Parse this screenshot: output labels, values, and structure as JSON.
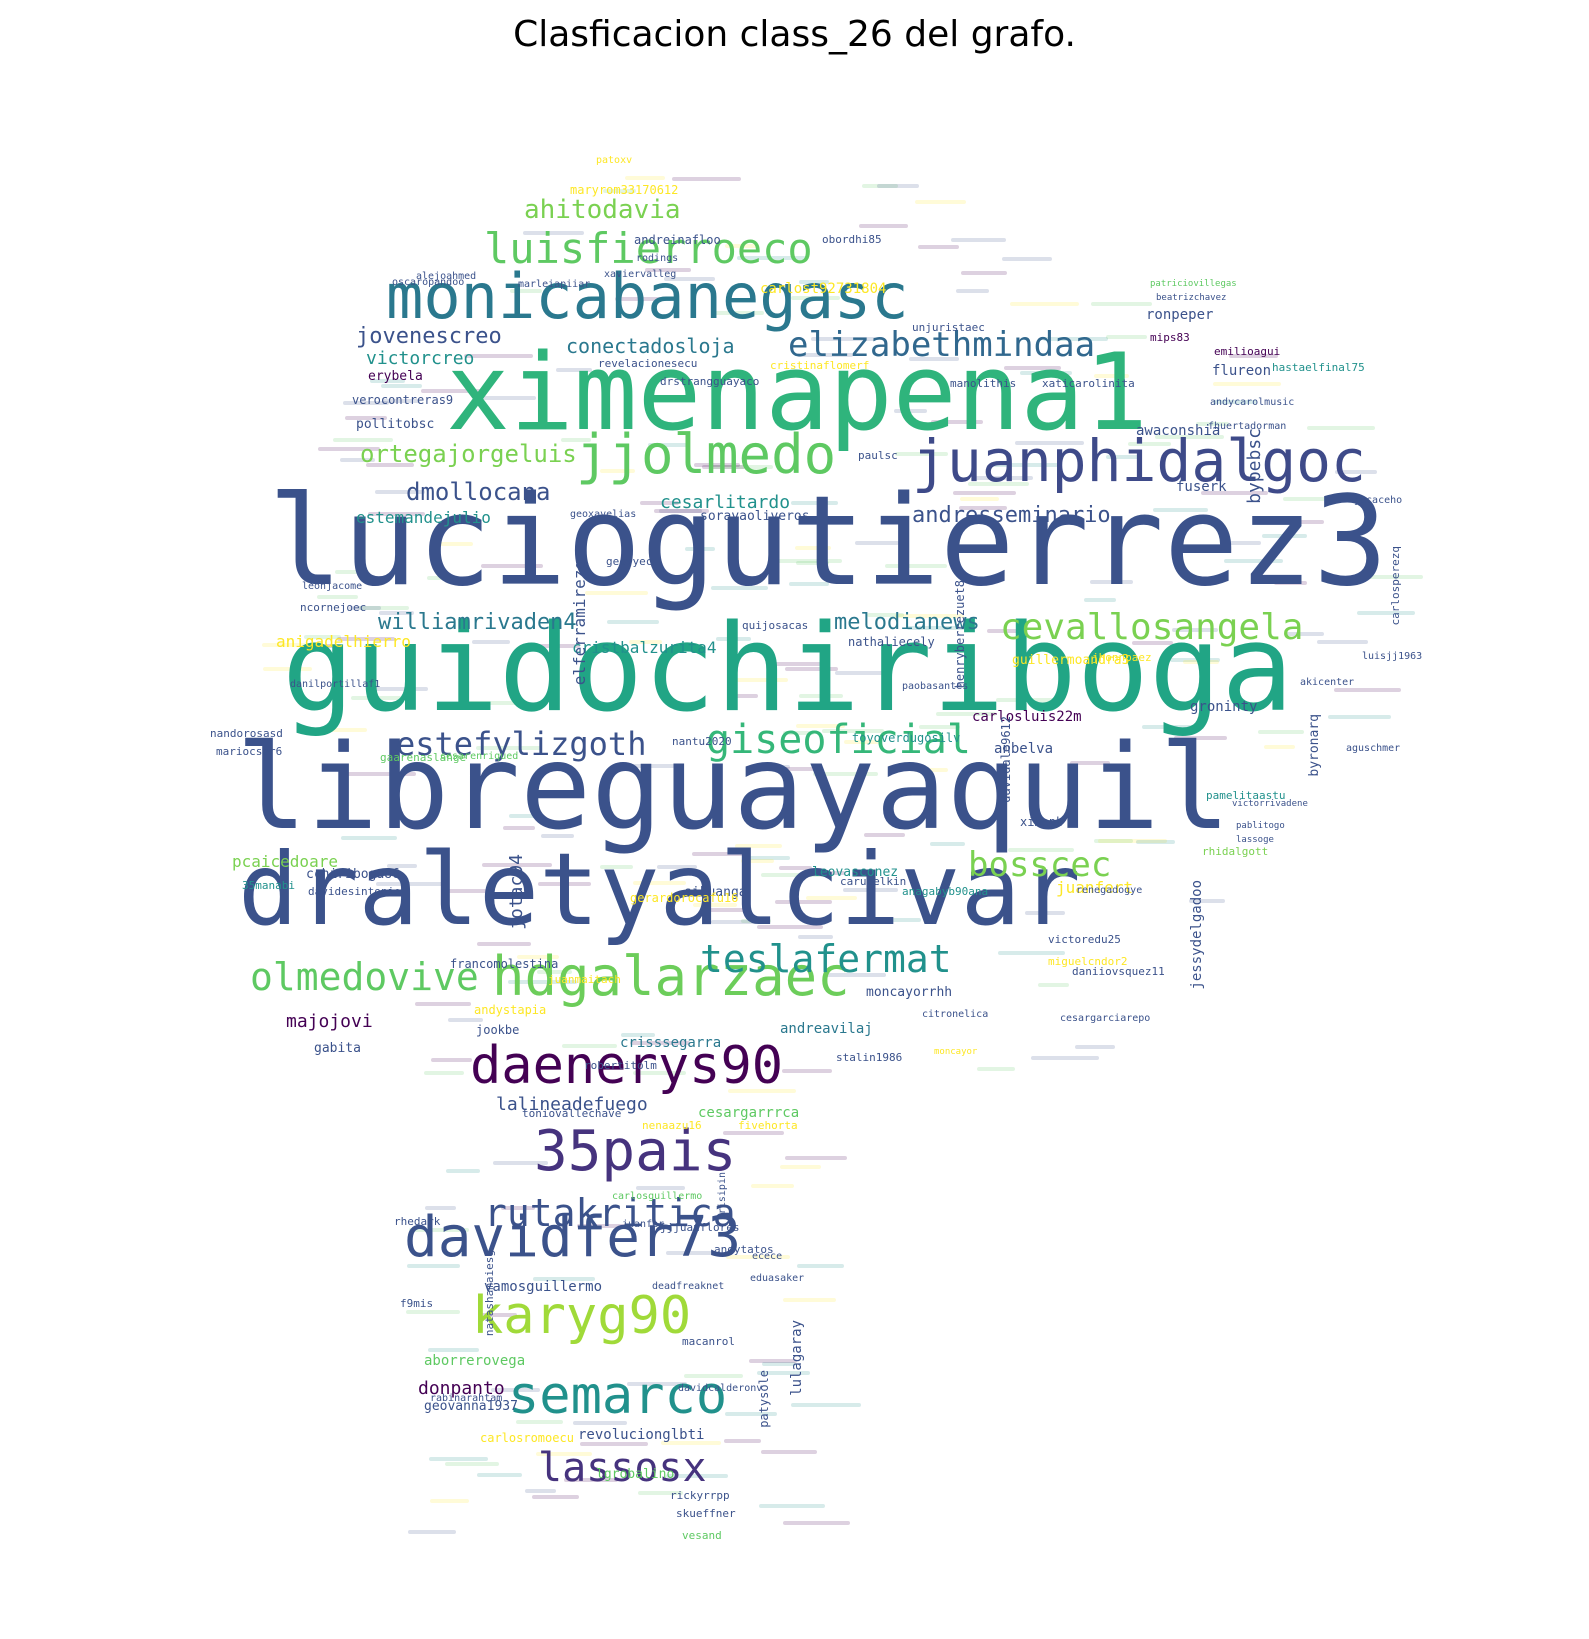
{
  "title": "Clasficacion class_26 del grafo.",
  "palette": [
    "#440154",
    "#3b528b",
    "#21918c",
    "#5ec962",
    "#fde725"
  ],
  "words": [
    {
      "text": "luciogutierrez3",
      "color": "#3b528b"
    },
    {
      "text": "guidochiriboga",
      "color": "#21a585"
    },
    {
      "text": "libreguayaquil",
      "color": "#3b528b"
    },
    {
      "text": "ximenapena1",
      "color": "#2fb47c"
    },
    {
      "text": "draletyalcivar",
      "color": "#3b528b"
    },
    {
      "text": "monicabanegasc",
      "color": "#2a788e"
    },
    {
      "text": "juanphidalgoc",
      "color": "#3e4a89"
    },
    {
      "text": "jjolmedo",
      "color": "#5ec962"
    },
    {
      "text": "hdgalarzaec",
      "color": "#6ccd5a"
    },
    {
      "text": "daenerys90",
      "color": "#440154"
    },
    {
      "text": "davidfer73",
      "color": "#3b528b"
    },
    {
      "text": "35pais",
      "color": "#46337e"
    },
    {
      "text": "karyg90",
      "color": "#a0da39"
    },
    {
      "text": "semarco",
      "color": "#21918c"
    },
    {
      "text": "lassosx",
      "color": "#46337e"
    },
    {
      "text": "luisfierroeco",
      "color": "#5ec962"
    },
    {
      "text": "elizabethmindaa",
      "color": "#31688e"
    },
    {
      "text": "giseoficial",
      "color": "#35b779"
    },
    {
      "text": "cevallosangela",
      "color": "#7ad151"
    },
    {
      "text": "rutakritica",
      "color": "#3b528b"
    },
    {
      "text": "teslafermat",
      "color": "#21918c"
    },
    {
      "text": "olmedovive",
      "color": "#5ec962"
    },
    {
      "text": "estefylizgoth",
      "color": "#3b528b"
    },
    {
      "text": "bosscec",
      "color": "#7ad151"
    },
    {
      "text": "ahitodavia",
      "color": "#7ad151"
    },
    {
      "text": "ortegajorgeluis",
      "color": "#7ad151"
    },
    {
      "text": "dmollocana",
      "color": "#3b528b"
    },
    {
      "text": "jovenescreo",
      "color": "#3b528b"
    },
    {
      "text": "williamrivaden4",
      "color": "#2a788e"
    },
    {
      "text": "melodianews",
      "color": "#2a788e"
    },
    {
      "text": "andresseminario",
      "color": "#3b528b"
    },
    {
      "text": "conectadosloja",
      "color": "#2a788e"
    },
    {
      "text": "cesarlitardo",
      "color": "#21918c"
    },
    {
      "text": "lalineadefuego",
      "color": "#3b528b"
    },
    {
      "text": "victorcreo",
      "color": "#21918c"
    },
    {
      "text": "estemandejulio",
      "color": "#21918c"
    },
    {
      "text": "majojovi",
      "color": "#440154"
    },
    {
      "text": "donpanto",
      "color": "#440154"
    },
    {
      "text": "aborrerovega",
      "color": "#5ec962"
    },
    {
      "text": "crisssegarra",
      "color": "#2a788e"
    },
    {
      "text": "andreavilaj",
      "color": "#2a788e"
    },
    {
      "text": "cesargarrrca",
      "color": "#5ec962"
    },
    {
      "text": "anigadelhierro",
      "color": "#fde725"
    },
    {
      "text": "cristbalzurita4",
      "color": "#21918c"
    },
    {
      "text": "carlosluis22m",
      "color": "#440154"
    },
    {
      "text": "juanfert",
      "color": "#fde725"
    },
    {
      "text": "pcaicedoare",
      "color": "#7ad151"
    },
    {
      "text": "vamosguillermo",
      "color": "#3b528b"
    },
    {
      "text": "revolucionglbti",
      "color": "#3b528b"
    },
    {
      "text": "geovanna1937",
      "color": "#3b528b"
    },
    {
      "text": "lgrobalino",
      "color": "#5ec962"
    },
    {
      "text": "erybela",
      "color": "#440154"
    },
    {
      "text": "pollitobsc",
      "color": "#3b528b"
    },
    {
      "text": "verocontreras9",
      "color": "#3b528b"
    },
    {
      "text": "awaconshia",
      "color": "#3b528b"
    },
    {
      "text": "fuserk",
      "color": "#3b528b"
    },
    {
      "text": "flureon",
      "color": "#3b528b"
    },
    {
      "text": "ronpeper",
      "color": "#3b528b"
    },
    {
      "text": "groninty",
      "color": "#3b528b"
    },
    {
      "text": "anbelva",
      "color": "#3b528b"
    },
    {
      "text": "leovasconez",
      "color": "#21918c"
    },
    {
      "text": "sikuanga",
      "color": "#3b528b"
    },
    {
      "text": "cchiriboga86",
      "color": "#3b528b"
    },
    {
      "text": "davidesintonio",
      "color": "#3b528b"
    },
    {
      "text": "35manabi",
      "color": "#21918c"
    },
    {
      "text": "gabita",
      "color": "#3b528b"
    },
    {
      "text": "andystapia",
      "color": "#fde725"
    },
    {
      "text": "jookbe",
      "color": "#3b528b"
    },
    {
      "text": "nandorosasd",
      "color": "#3b528b"
    },
    {
      "text": "mariocsar6",
      "color": "#3b528b"
    },
    {
      "text": "ncornejoec",
      "color": "#3b528b"
    },
    {
      "text": "nathaliecely",
      "color": "#3b528b"
    },
    {
      "text": "quijosacas",
      "color": "#3b528b"
    },
    {
      "text": "sorayaoliveros",
      "color": "#3b528b"
    },
    {
      "text": "geoxavelias",
      "color": "#3b528b"
    },
    {
      "text": "toyoverdugosilv",
      "color": "#21918c"
    },
    {
      "text": "nantu2020",
      "color": "#3b528b"
    },
    {
      "text": "stalin1986",
      "color": "#3b528b"
    },
    {
      "text": "moncayorrhh",
      "color": "#3b528b"
    },
    {
      "text": "francomolestina",
      "color": "#3b528b"
    },
    {
      "text": "robertitolm",
      "color": "#3b528b"
    },
    {
      "text": "toniovallechave",
      "color": "#3b528b"
    },
    {
      "text": "rhedark",
      "color": "#3b528b"
    },
    {
      "text": "f9mis",
      "color": "#3b528b"
    },
    {
      "text": "macanrol",
      "color": "#3b528b"
    },
    {
      "text": "skueffner",
      "color": "#3b528b"
    },
    {
      "text": "vesand",
      "color": "#5ec962"
    },
    {
      "text": "rickyrrpp",
      "color": "#3b528b"
    },
    {
      "text": "carlosromoecu",
      "color": "#fde725"
    },
    {
      "text": "nenaazu16",
      "color": "#fde725"
    },
    {
      "text": "fivehorta",
      "color": "#fde725"
    },
    {
      "text": "victoredu25",
      "color": "#3b528b"
    },
    {
      "text": "renegadogye",
      "color": "#3b528b"
    },
    {
      "text": "rhidalgott",
      "color": "#7ad151"
    },
    {
      "text": "fhuertadorman",
      "color": "#3b528b"
    },
    {
      "text": "andycarolmusic",
      "color": "#3b528b"
    },
    {
      "text": "hastaelfinal75",
      "color": "#21918c"
    },
    {
      "text": "emilioagui",
      "color": "#440154"
    },
    {
      "text": "mips83",
      "color": "#440154"
    },
    {
      "text": "andreinafloo",
      "color": "#3b528b"
    },
    {
      "text": "obordhi85",
      "color": "#3b528b"
    },
    {
      "text": "maryrom33170612",
      "color": "#fde725"
    },
    {
      "text": "carlost92731804",
      "color": "#fde725"
    },
    {
      "text": "unjuristaec",
      "color": "#3b528b"
    },
    {
      "text": "manolithis",
      "color": "#3b528b"
    },
    {
      "text": "xaticarolinita",
      "color": "#3b528b"
    },
    {
      "text": "drstrangguayaco",
      "color": "#3b528b"
    },
    {
      "text": "revelacionesecu",
      "color": "#3b528b"
    },
    {
      "text": "alejoahmed",
      "color": "#3b528b"
    },
    {
      "text": "paulsc",
      "color": "#3b528b"
    },
    {
      "text": "jucaceho",
      "color": "#3b528b"
    },
    {
      "text": "aguschmer",
      "color": "#3b528b"
    },
    {
      "text": "luisjj1963",
      "color": "#3b528b"
    },
    {
      "text": "akicenter",
      "color": "#3b528b"
    },
    {
      "text": "guillermoandra3",
      "color": "#fde725"
    },
    {
      "text": "jhonnpaez",
      "color": "#fde725"
    },
    {
      "text": "gaarenaslange",
      "color": "#5ec962"
    },
    {
      "text": "paobasantes",
      "color": "#3b528b"
    },
    {
      "text": "caruaelkin",
      "color": "#3b528b"
    },
    {
      "text": "anagabyb90ana",
      "color": "#21918c"
    },
    {
      "text": "gerardorocafu16",
      "color": "#fde725"
    },
    {
      "text": "juanmaitach",
      "color": "#fde725"
    },
    {
      "text": "daniiovsquez11",
      "color": "#3b528b"
    },
    {
      "text": "miguelcndor2",
      "color": "#fde725"
    },
    {
      "text": "leonjacome",
      "color": "#3b528b"
    },
    {
      "text": "geovyec",
      "color": "#3b528b"
    },
    {
      "text": "carlosperezq",
      "color": "#3b528b"
    },
    {
      "text": "bypebsc",
      "color": "#3b528b"
    },
    {
      "text": "jotac94",
      "color": "#3b528b"
    },
    {
      "text": "jessydelgadoo",
      "color": "#3b528b"
    },
    {
      "text": "lulagaray",
      "color": "#3b528b"
    },
    {
      "text": "patysole",
      "color": "#3b528b"
    },
    {
      "text": "henryberrezuet8",
      "color": "#3b528b"
    },
    {
      "text": "davidale9612",
      "color": "#3b528b"
    },
    {
      "text": "natashamaiesg",
      "color": "#3b528b"
    },
    {
      "text": "elferramirezg",
      "color": "#3b528b"
    },
    {
      "text": "byronarq",
      "color": "#3b528b"
    },
    {
      "text": "pamelitaastu",
      "color": "#21918c"
    },
    {
      "text": "ximepb",
      "color": "#3b528b"
    },
    {
      "text": "patoxv",
      "color": "#fde725"
    },
    {
      "text": "xaviervalleg",
      "color": "#3b528b"
    },
    {
      "text": "rodings",
      "color": "#3b528b"
    },
    {
      "text": "oscaropandoo",
      "color": "#3b528b"
    },
    {
      "text": "marleiapiiar",
      "color": "#3b528b"
    },
    {
      "text": "patriciovillegas",
      "color": "#5ec962"
    },
    {
      "text": "beatrizchavez",
      "color": "#3b528b"
    },
    {
      "text": "victorrivadene",
      "color": "#3b528b"
    },
    {
      "text": "pablitogo",
      "color": "#3b528b"
    },
    {
      "text": "lassoge",
      "color": "#3b528b"
    },
    {
      "text": "cesarenriqued",
      "color": "#5ec962"
    },
    {
      "text": "danilportillaf1",
      "color": "#3b528b"
    },
    {
      "text": "cristinaflomerf",
      "color": "#fde725"
    },
    {
      "text": "jjjuanflores",
      "color": "#3b528b"
    },
    {
      "text": "angytatos",
      "color": "#3b528b"
    },
    {
      "text": "eduasaker",
      "color": "#3b528b"
    },
    {
      "text": "deadfreaknet",
      "color": "#3b528b"
    },
    {
      "text": "ecece",
      "color": "#3b528b"
    },
    {
      "text": "brisipin",
      "color": "#3b528b"
    },
    {
      "text": "carlosguillermo",
      "color": "#5ec962"
    },
    {
      "text": "juanfer",
      "color": "#3b528b"
    },
    {
      "text": "moncayor",
      "color": "#fde725"
    },
    {
      "text": "cesargarciarepo",
      "color": "#3b528b"
    },
    {
      "text": "citronelica",
      "color": "#3b528b"
    },
    {
      "text": "rabinarahtam",
      "color": "#3b528b"
    },
    {
      "text": "davidcalderonv",
      "color": "#3b528b"
    }
  ]
}
